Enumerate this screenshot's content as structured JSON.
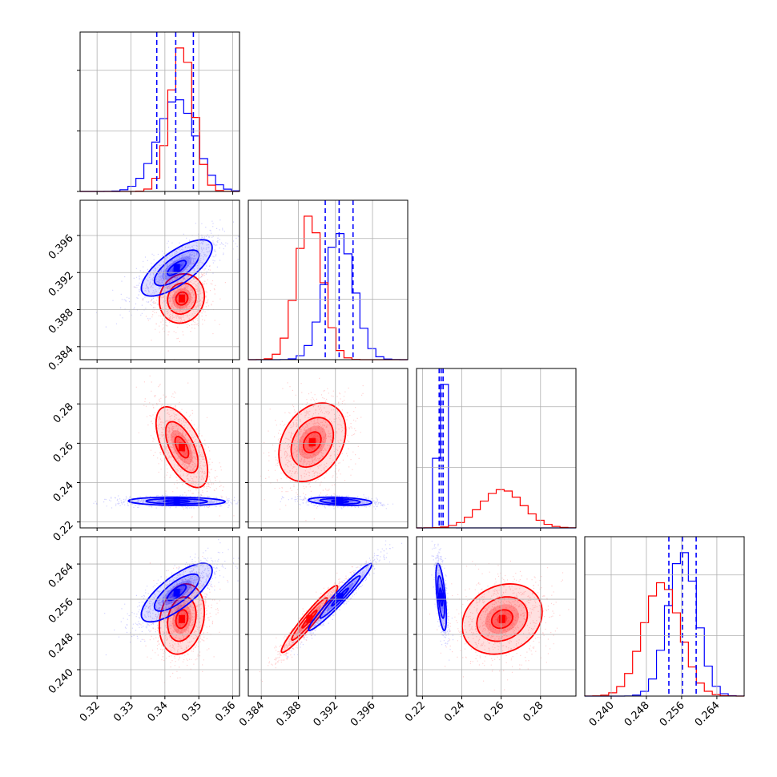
{
  "chart_data": {
    "type": "corner",
    "title": "",
    "grid": true,
    "legend": "none",
    "colors": {
      "blue": "#0000ff",
      "red": "#ff0000",
      "grid": "#b0b0b0",
      "axis": "#000000"
    },
    "params": [
      {
        "range": [
          0.315,
          0.362
        ],
        "ticks": [
          0.32,
          0.33,
          0.34,
          0.35,
          0.36
        ],
        "tick_labels": [
          "0.32",
          "0.33",
          "0.34",
          "0.35",
          "0.36"
        ]
      },
      {
        "range": [
          0.3826,
          0.3998
        ],
        "ticks": [
          0.384,
          0.388,
          0.392,
          0.396
        ],
        "tick_labels": [
          "0.384",
          "0.388",
          "0.392",
          "0.396"
        ]
      },
      {
        "range": [
          0.217,
          0.298
        ],
        "ticks": [
          0.22,
          0.24,
          0.26,
          0.28
        ],
        "tick_labels": [
          "0.22",
          "0.24",
          "0.26",
          "0.28"
        ]
      },
      {
        "range": [
          0.234,
          0.2702
        ],
        "ticks": [
          0.24,
          0.248,
          0.256,
          0.264
        ],
        "tick_labels": [
          "0.240",
          "0.248",
          "0.256",
          "0.264"
        ]
      }
    ],
    "marginals": [
      {
        "blue": {
          "mean": 0.3435,
          "sd": 0.0055,
          "quantiles": [
            0.3376,
            0.3432,
            0.3484
          ]
        },
        "red": {
          "mean": 0.345,
          "sd": 0.0035
        }
      },
      {
        "blue": {
          "mean": 0.3924,
          "sd": 0.0016,
          "quantiles": [
            0.3909,
            0.3924,
            0.3939
          ]
        },
        "red": {
          "mean": 0.3892,
          "sd": 0.0014
        }
      },
      {
        "blue": {
          "mean": 0.2295,
          "sd": 0.0014,
          "quantiles": [
            0.2285,
            0.2295,
            0.2305
          ]
        },
        "red": {
          "mean": 0.2605,
          "sd": 0.0107
        }
      },
      {
        "blue": {
          "mean": 0.2562,
          "sd": 0.0033,
          "quantiles": [
            0.2531,
            0.2562,
            0.2593
          ]
        },
        "red": {
          "mean": 0.2515,
          "sd": 0.0042
        }
      }
    ],
    "joints": [
      {
        "x": 0,
        "y": 1,
        "blue": {
          "mean": [
            0.3435,
            0.3925
          ],
          "sd": [
            0.0055,
            0.0016
          ],
          "rho": 0.72
        },
        "red": {
          "mean": [
            0.345,
            0.3892
          ],
          "sd": [
            0.0035,
            0.0014
          ],
          "rho": 0.1
        }
      },
      {
        "x": 0,
        "y": 2,
        "blue": {
          "mean": [
            0.3435,
            0.2305
          ],
          "sd": [
            0.0075,
            0.0011
          ],
          "rho": -0.1
        },
        "red": {
          "mean": [
            0.345,
            0.258
          ],
          "sd": [
            0.004,
            0.0108
          ],
          "rho": -0.6
        }
      },
      {
        "x": 1,
        "y": 2,
        "blue": {
          "mean": [
            0.3925,
            0.2305
          ],
          "sd": [
            0.0018,
            0.0011
          ],
          "rho": -0.3
        },
        "red": {
          "mean": [
            0.3895,
            0.2605
          ],
          "sd": [
            0.0019,
            0.0105
          ],
          "rho": 0.3
        }
      },
      {
        "x": 0,
        "y": 3,
        "blue": {
          "mean": [
            0.3435,
            0.2575
          ],
          "sd": [
            0.0055,
            0.0035
          ],
          "rho": 0.75
        },
        "red": {
          "mean": [
            0.345,
            0.2515
          ],
          "sd": [
            0.0035,
            0.0042
          ],
          "rho": 0.2
        }
      },
      {
        "x": 1,
        "y": 3,
        "blue": {
          "mean": [
            0.3925,
            0.2565
          ],
          "sd": [
            0.0018,
            0.004
          ],
          "rho": 0.97
        },
        "red": {
          "mean": [
            0.3892,
            0.2515
          ],
          "sd": [
            0.0016,
            0.004
          ],
          "rho": 0.96
        }
      },
      {
        "x": 2,
        "y": 3,
        "blue": {
          "mean": [
            0.2295,
            0.2565
          ],
          "sd": [
            0.0014,
            0.004
          ],
          "rho": -0.6
        },
        "red": {
          "mean": [
            0.2605,
            0.2515
          ],
          "sd": [
            0.0107,
            0.0042
          ],
          "rho": 0.2
        }
      }
    ]
  }
}
